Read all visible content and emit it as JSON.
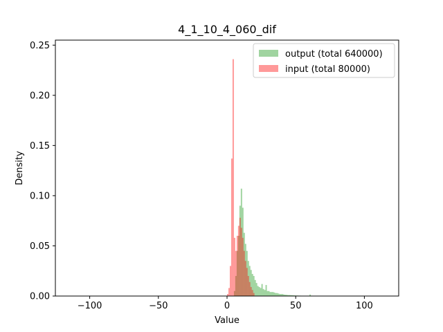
{
  "chart_data": {
    "type": "histogram",
    "title": "4_1_10_4_060_dif",
    "xlabel": "Value",
    "ylabel": "Density",
    "xlim": [
      -125,
      125
    ],
    "ylim": [
      0,
      0.255
    ],
    "xticks": [
      -100,
      -50,
      0,
      50,
      100
    ],
    "xtick_labels": [
      "−100",
      "−50",
      "0",
      "50",
      "100"
    ],
    "yticks": [
      0.0,
      0.05,
      0.1,
      0.15,
      0.2,
      0.25
    ],
    "ytick_labels": [
      "0.00",
      "0.05",
      "0.10",
      "0.15",
      "0.20",
      "0.25"
    ],
    "bin_width": 1,
    "legend_position": "upper-right",
    "grid": false,
    "series": [
      {
        "name": "output (total 640000)",
        "color": "#2ca02c",
        "opacity": 0.45,
        "bin_starts": [
          5,
          6,
          7,
          8,
          9,
          10,
          11,
          12,
          13,
          14,
          15,
          16,
          17,
          18,
          19,
          20,
          21,
          22,
          23,
          24,
          25,
          26,
          27,
          28,
          29,
          30,
          31,
          32,
          33,
          34,
          35,
          36,
          37,
          38,
          39,
          40,
          41,
          42,
          43,
          44,
          45,
          46,
          47,
          48,
          49,
          50,
          52,
          54,
          56,
          58,
          60
        ],
        "values": [
          0.005,
          0.02,
          0.045,
          0.06,
          0.09,
          0.107,
          0.088,
          0.063,
          0.052,
          0.045,
          0.035,
          0.03,
          0.026,
          0.022,
          0.02,
          0.016,
          0.013,
          0.01,
          0.009,
          0.008,
          0.012,
          0.007,
          0.006,
          0.011,
          0.005,
          0.005,
          0.004,
          0.004,
          0.004,
          0.0035,
          0.003,
          0.003,
          0.0025,
          0.002,
          0.002,
          0.002,
          0.0015,
          0.0013,
          0.0012,
          0.001,
          0.001,
          0.0009,
          0.0008,
          0.0007,
          0.0006,
          0.0005,
          0.0004,
          0.0003,
          0.0003,
          0.0002,
          0.0015
        ]
      },
      {
        "name": "input (total 80000)",
        "color": "#ff0000",
        "opacity": 0.4,
        "bin_starts": [
          0,
          1,
          2,
          3,
          4,
          5,
          6,
          7,
          8,
          9,
          10,
          11,
          12,
          13,
          14,
          15,
          16,
          17,
          18,
          19
        ],
        "values": [
          0.002,
          0.008,
          0.03,
          0.137,
          0.236,
          0.058,
          0.045,
          0.06,
          0.07,
          0.078,
          0.068,
          0.058,
          0.045,
          0.035,
          0.028,
          0.02,
          0.014,
          0.009,
          0.006,
          0.003
        ]
      }
    ]
  }
}
